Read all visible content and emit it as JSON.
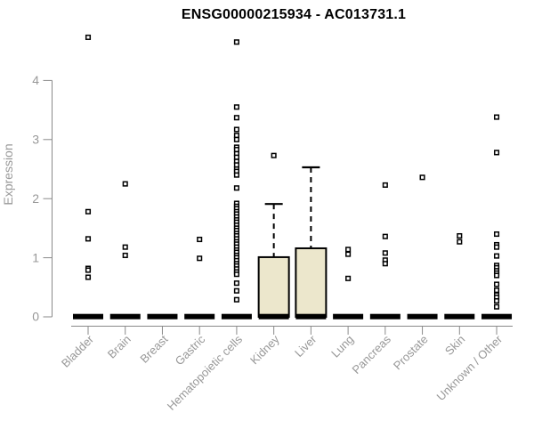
{
  "chart_data": {
    "type": "boxplot",
    "title": "ENSG00000215934 - AC013731.1",
    "ylabel": "Expression",
    "xlabel": "",
    "ylim": [
      0,
      4
    ],
    "yticks": [
      0,
      1,
      2,
      3,
      4
    ],
    "grid": false,
    "legend": "none",
    "colors": {
      "box_fill": "#ECE7CC",
      "box_border": "#000000",
      "median": "#000000",
      "outlier_fill": "#ffffff",
      "outlier_stroke": "#000000",
      "axis_line": "#8A8A8A",
      "axis_text": "#989898",
      "title_text": "#000000"
    },
    "categories": [
      {
        "name": "Bladder",
        "median": 0,
        "q1": 0,
        "q3": 0,
        "whisker_low": 0,
        "whisker_high": 0,
        "outliers": [
          4.73,
          1.78,
          1.32,
          0.82,
          0.79,
          0.67
        ]
      },
      {
        "name": "Brain",
        "median": 0,
        "q1": 0,
        "q3": 0,
        "whisker_low": 0,
        "whisker_high": 0,
        "outliers": [
          2.25,
          1.18,
          1.04
        ]
      },
      {
        "name": "Breast",
        "median": 0,
        "q1": 0,
        "q3": 0,
        "whisker_low": 0,
        "whisker_high": 0,
        "outliers": []
      },
      {
        "name": "Gastric",
        "median": 0,
        "q1": 0,
        "q3": 0,
        "whisker_low": 0,
        "whisker_high": 0,
        "outliers": [
          1.31,
          0.99
        ]
      },
      {
        "name": "Hematopoietic cells",
        "median": 0,
        "q1": 0,
        "q3": 0,
        "whisker_low": 0,
        "whisker_high": 0,
        "outliers": [
          4.65,
          3.55,
          3.37,
          3.17,
          3.07,
          3.0,
          2.87,
          2.83,
          2.76,
          2.7,
          2.63,
          2.57,
          2.5,
          2.46,
          2.4,
          2.18,
          1.92,
          1.87,
          1.83,
          1.78,
          1.74,
          1.69,
          1.64,
          1.6,
          1.55,
          1.5,
          1.46,
          1.41,
          1.37,
          1.32,
          1.27,
          1.23,
          1.18,
          1.13,
          1.09,
          1.04,
          1.0,
          0.95,
          0.9,
          0.86,
          0.81,
          0.76,
          0.72,
          0.57,
          0.44,
          0.29
        ]
      },
      {
        "name": "Kidney",
        "median": 0,
        "q1": 0,
        "q3": 1.01,
        "whisker_low": 0,
        "whisker_high": 1.91,
        "outliers": [
          2.73
        ]
      },
      {
        "name": "Liver",
        "median": 0,
        "q1": 0,
        "q3": 1.16,
        "whisker_low": 0,
        "whisker_high": 2.53,
        "outliers": []
      },
      {
        "name": "Lung",
        "median": 0,
        "q1": 0,
        "q3": 0,
        "whisker_low": 0,
        "whisker_high": 0,
        "outliers": [
          1.14,
          1.06,
          0.65
        ]
      },
      {
        "name": "Pancreas",
        "median": 0,
        "q1": 0,
        "q3": 0,
        "whisker_low": 0,
        "whisker_high": 0,
        "outliers": [
          2.23,
          1.36,
          1.08,
          0.96,
          0.9
        ]
      },
      {
        "name": "Prostate",
        "median": 0,
        "q1": 0,
        "q3": 0,
        "whisker_low": 0,
        "whisker_high": 0,
        "outliers": [
          2.36
        ]
      },
      {
        "name": "Skin",
        "median": 0,
        "q1": 0,
        "q3": 0,
        "whisker_low": 0,
        "whisker_high": 0,
        "outliers": [
          1.37,
          1.27
        ]
      },
      {
        "name": "Unknown / Other",
        "median": 0,
        "q1": 0,
        "q3": 0,
        "whisker_low": 0,
        "whisker_high": 0,
        "outliers": [
          3.38,
          2.78,
          1.4,
          1.22,
          1.18,
          1.03,
          0.87,
          0.83,
          0.78,
          0.74,
          0.7,
          0.55,
          0.45,
          0.37,
          0.33,
          0.27,
          0.17
        ]
      }
    ]
  }
}
